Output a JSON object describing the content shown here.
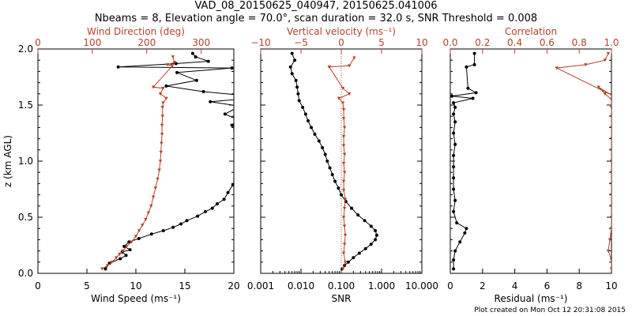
{
  "title_line1": "VAD_08_20150625_040947, 20150625.041006",
  "title_line2": "Nbeams = 8, Elevation angle = 70.0°, scan duration = 32.0 s, SNR Threshold = 0.008",
  "footer": "Plot created on Mon Oct 12 20:31:08 2015",
  "colors": {
    "black": "#000000",
    "red": "#b5422a"
  },
  "chart_data": [
    {
      "type": "line",
      "ylabel": "z (km AGL)",
      "ylim": [
        0,
        2
      ],
      "yticks": [
        "0.0",
        "0.5",
        "1.0",
        "1.5",
        "2.0"
      ],
      "bottom_axis": {
        "label": "Wind Speed (ms⁻¹)",
        "lim": [
          0,
          20
        ],
        "ticks": [
          "0",
          "5",
          "10",
          "15",
          "20"
        ]
      },
      "top_axis": {
        "label": "Wind Direction (deg)",
        "lim": [
          0,
          360
        ],
        "ticks": [
          "0",
          "100",
          "200",
          "300"
        ]
      },
      "series": [
        {
          "axis": "bottom",
          "color": "black",
          "points": [
            [
              6.9,
              0.04
            ],
            [
              7.3,
              0.09
            ],
            [
              8.4,
              0.13
            ],
            [
              9.0,
              0.16
            ],
            [
              8.6,
              0.19
            ],
            [
              9.4,
              0.21
            ],
            [
              8.8,
              0.24
            ],
            [
              9.3,
              0.28
            ],
            [
              10.3,
              0.31
            ],
            [
              11.6,
              0.35
            ],
            [
              12.8,
              0.38
            ],
            [
              13.8,
              0.41
            ],
            [
              14.6,
              0.44
            ],
            [
              15.2,
              0.47
            ],
            [
              16.3,
              0.51
            ],
            [
              17.1,
              0.55
            ],
            [
              17.8,
              0.58
            ],
            [
              18.3,
              0.62
            ],
            [
              19.0,
              0.66
            ],
            [
              19.4,
              0.72
            ],
            [
              19.9,
              0.79
            ],
            [
              20.1,
              0.84
            ],
            [
              20.5,
              0.92
            ],
            [
              21.1,
              1.0
            ],
            [
              21.8,
              1.1
            ],
            [
              21.6,
              1.2
            ],
            [
              20.9,
              1.26
            ],
            [
              20.1,
              1.29
            ],
            [
              19.8,
              1.32
            ],
            [
              20.4,
              1.37
            ],
            [
              19.1,
              1.42
            ],
            [
              20.6,
              1.49
            ],
            [
              17.6,
              1.53
            ],
            [
              23.0,
              1.57
            ],
            [
              16.9,
              1.62
            ],
            [
              13.1,
              1.67
            ],
            [
              16.2,
              1.72
            ],
            [
              14.2,
              1.79
            ],
            [
              19.8,
              1.83
            ],
            [
              8.2,
              1.84
            ],
            [
              14.1,
              1.87
            ],
            [
              17.4,
              1.89
            ],
            [
              16.1,
              1.93
            ],
            [
              15.8,
              1.96
            ]
          ]
        },
        {
          "axis": "top",
          "color": "red",
          "points": [
            [
              118,
              0.04
            ],
            [
              128,
              0.07
            ],
            [
              136,
              0.1
            ],
            [
              144,
              0.14
            ],
            [
              150,
              0.17
            ],
            [
              156,
              0.2
            ],
            [
              163,
              0.24
            ],
            [
              172,
              0.28
            ],
            [
              180,
              0.33
            ],
            [
              186,
              0.38
            ],
            [
              192,
              0.43
            ],
            [
              198,
              0.48
            ],
            [
              203,
              0.54
            ],
            [
              208,
              0.6
            ],
            [
              212,
              0.68
            ],
            [
              216,
              0.76
            ],
            [
              220,
              0.84
            ],
            [
              223,
              0.92
            ],
            [
              225,
              1.0
            ],
            [
              226,
              1.08
            ],
            [
              227,
              1.16
            ],
            [
              228,
              1.24
            ],
            [
              228,
              1.32
            ],
            [
              229,
              1.4
            ],
            [
              229,
              1.48
            ],
            [
              230,
              1.52
            ],
            [
              236,
              1.56
            ],
            [
              225,
              1.6
            ],
            [
              230,
              1.65
            ],
            [
              212,
              1.66
            ],
            [
              247,
              1.85
            ],
            [
              238,
              1.86
            ],
            [
              251,
              1.88
            ],
            [
              248,
              1.93
            ]
          ]
        }
      ]
    },
    {
      "type": "line",
      "bottom_axis": {
        "label": "SNR",
        "scale": "log",
        "lim": [
          0.001,
          10
        ],
        "ticks": [
          "0.001",
          "0.010",
          "0.100",
          "1.000",
          "10.000"
        ]
      },
      "top_axis": {
        "label": "Vertical velocity (ms⁻¹)",
        "lim": [
          -10,
          10
        ],
        "ticks": [
          "−10",
          "−5",
          "0",
          "5",
          "10"
        ]
      },
      "reference_line": {
        "axis": "top",
        "value": 0,
        "style": "dotted"
      },
      "series": [
        {
          "axis": "bottom",
          "color": "black",
          "points": [
            [
              0.105,
              0.04
            ],
            [
              0.12,
              0.07
            ],
            [
              0.15,
              0.1
            ],
            [
              0.2,
              0.14
            ],
            [
              0.28,
              0.18
            ],
            [
              0.4,
              0.22
            ],
            [
              0.55,
              0.26
            ],
            [
              0.7,
              0.3
            ],
            [
              0.76,
              0.34
            ],
            [
              0.7,
              0.38
            ],
            [
              0.55,
              0.42
            ],
            [
              0.38,
              0.47
            ],
            [
              0.26,
              0.52
            ],
            [
              0.18,
              0.58
            ],
            [
              0.13,
              0.64
            ],
            [
              0.1,
              0.7
            ],
            [
              0.085,
              0.76
            ],
            [
              0.07,
              0.82
            ],
            [
              0.06,
              0.88
            ],
            [
              0.052,
              0.94
            ],
            [
              0.045,
              1.0
            ],
            [
              0.04,
              1.06
            ],
            [
              0.034,
              1.12
            ],
            [
              0.028,
              1.18
            ],
            [
              0.022,
              1.24
            ],
            [
              0.018,
              1.3
            ],
            [
              0.015,
              1.36
            ],
            [
              0.013,
              1.42
            ],
            [
              0.011,
              1.48
            ],
            [
              0.009,
              1.54
            ],
            [
              0.0085,
              1.6
            ],
            [
              0.008,
              1.66
            ],
            [
              0.0075,
              1.72
            ],
            [
              0.006,
              1.78
            ],
            [
              0.0055,
              1.84
            ],
            [
              0.007,
              1.9
            ],
            [
              0.006,
              1.96
            ]
          ]
        },
        {
          "axis": "top",
          "color": "red",
          "points": [
            [
              0.2,
              0.04
            ],
            [
              0.5,
              0.1
            ],
            [
              0.3,
              0.18
            ],
            [
              0.4,
              0.26
            ],
            [
              0.5,
              0.34
            ],
            [
              0.4,
              0.42
            ],
            [
              0.3,
              0.5
            ],
            [
              0.4,
              0.58
            ],
            [
              0.5,
              0.66
            ],
            [
              0.3,
              0.74
            ],
            [
              0.3,
              0.82
            ],
            [
              0.4,
              0.9
            ],
            [
              0.3,
              0.98
            ],
            [
              0.4,
              1.06
            ],
            [
              0.3,
              1.14
            ],
            [
              0.3,
              1.22
            ],
            [
              0.4,
              1.3
            ],
            [
              0.3,
              1.38
            ],
            [
              0.3,
              1.46
            ],
            [
              0.2,
              1.52
            ],
            [
              -0.3,
              1.56
            ],
            [
              1.0,
              1.6
            ],
            [
              0.2,
              1.65
            ],
            [
              -1.5,
              1.84
            ],
            [
              1.0,
              1.85
            ],
            [
              1.6,
              1.92
            ]
          ]
        }
      ]
    },
    {
      "type": "line",
      "bottom_axis": {
        "label": "Residual (ms⁻¹)",
        "lim": [
          0,
          10
        ],
        "ticks": [
          "0",
          "2",
          "4",
          "6",
          "8",
          "10"
        ]
      },
      "top_axis": {
        "label": "Correlation",
        "lim": [
          0,
          1
        ],
        "ticks": [
          "0.0",
          "0.2",
          "0.4",
          "0.6",
          "0.8",
          "1.0"
        ]
      },
      "series": [
        {
          "axis": "bottom",
          "color": "black",
          "points": [
            [
              0.2,
              0.04
            ],
            [
              0.2,
              0.12
            ],
            [
              0.3,
              0.2
            ],
            [
              0.6,
              0.28
            ],
            [
              0.9,
              0.36
            ],
            [
              1.0,
              0.4
            ],
            [
              0.4,
              0.45
            ],
            [
              0.2,
              0.55
            ],
            [
              0.3,
              0.65
            ],
            [
              0.2,
              0.75
            ],
            [
              0.2,
              0.85
            ],
            [
              0.2,
              0.95
            ],
            [
              0.2,
              1.05
            ],
            [
              0.3,
              1.15
            ],
            [
              0.2,
              1.25
            ],
            [
              0.3,
              1.35
            ],
            [
              0.2,
              1.42
            ],
            [
              0.3,
              1.48
            ],
            [
              0.2,
              1.52
            ],
            [
              1.4,
              1.56
            ],
            [
              0.1,
              1.58
            ],
            [
              1.6,
              1.61
            ],
            [
              1.1,
              1.65
            ],
            [
              1.0,
              1.84
            ],
            [
              1.5,
              1.86
            ],
            [
              1.5,
              1.96
            ]
          ]
        },
        {
          "axis": "top",
          "color": "red",
          "points": [
            [
              1.0,
              0.04
            ],
            [
              1.0,
              0.12
            ],
            [
              0.98,
              0.2
            ],
            [
              0.99,
              0.3
            ],
            [
              1.0,
              0.4
            ],
            [
              1.0,
              0.5
            ],
            [
              1.0,
              0.6
            ],
            [
              1.0,
              0.7
            ],
            [
              1.0,
              0.8
            ],
            [
              1.0,
              0.9
            ],
            [
              1.0,
              1.0
            ],
            [
              1.0,
              1.1
            ],
            [
              1.0,
              1.2
            ],
            [
              1.0,
              1.3
            ],
            [
              1.0,
              1.4
            ],
            [
              1.0,
              1.48
            ],
            [
              1.0,
              1.55
            ],
            [
              0.96,
              1.6
            ],
            [
              0.92,
              1.66
            ],
            [
              1.0,
              1.59
            ],
            [
              0.66,
              1.83
            ],
            [
              0.84,
              1.86
            ],
            [
              0.96,
              1.9
            ],
            [
              0.98,
              1.96
            ]
          ]
        }
      ]
    }
  ]
}
